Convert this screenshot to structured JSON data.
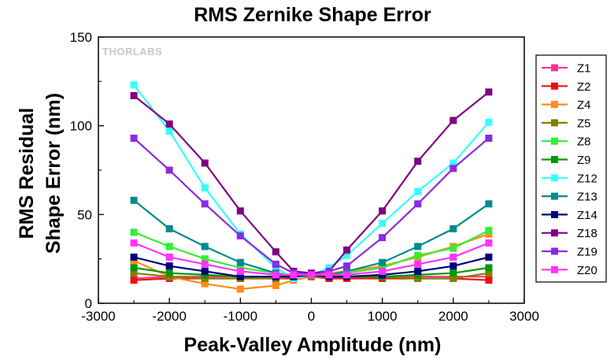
{
  "chart_data": {
    "type": "line",
    "title": "RMS Zernike Shape Error",
    "xlabel": "Peak-Valley Amplitude (nm)",
    "ylabel_line1": "RMS Residual",
    "ylabel_line2": "Shape Error (nm)",
    "watermark": "THORLABS",
    "xlim": [
      -3000,
      3000
    ],
    "ylim": [
      0,
      150
    ],
    "xticks": [
      -3000,
      -2000,
      -1000,
      0,
      1000,
      2000,
      3000
    ],
    "yticks": [
      0,
      50,
      100,
      150
    ],
    "grid": false,
    "legend_position": "right",
    "x": [
      -2500,
      -2000,
      -1500,
      -1000,
      -500,
      -250,
      0,
      250,
      500,
      1000,
      1500,
      2000,
      2500
    ],
    "series": [
      {
        "name": "Z1",
        "color": "#ff3399",
        "marker": "square",
        "values": [
          14,
          15,
          15,
          15,
          15,
          15,
          15,
          15,
          15,
          15,
          15,
          15,
          15
        ]
      },
      {
        "name": "Z2",
        "color": "#ee1111",
        "marker": "square",
        "values": [
          13,
          14,
          14,
          14,
          14,
          14,
          15,
          14,
          14,
          14,
          14,
          14,
          13
        ]
      },
      {
        "name": "Z4",
        "color": "#ff8c1a",
        "marker": "square",
        "values": [
          24,
          15,
          11,
          8,
          10,
          13,
          15,
          17,
          18,
          21,
          26,
          32,
          39
        ]
      },
      {
        "name": "Z5",
        "color": "#808000",
        "marker": "square",
        "values": [
          17,
          15,
          14,
          14,
          14,
          15,
          15,
          15,
          15,
          15,
          14,
          14,
          17
        ]
      },
      {
        "name": "Z8",
        "color": "#33ee33",
        "marker": "square",
        "values": [
          40,
          32,
          25,
          20,
          17,
          16,
          16,
          16,
          17,
          20,
          27,
          31,
          41
        ]
      },
      {
        "name": "Z9",
        "color": "#009900",
        "marker": "square",
        "values": [
          20,
          17,
          16,
          15,
          15,
          15,
          16,
          15,
          15,
          15,
          16,
          17,
          20
        ]
      },
      {
        "name": "Z12",
        "color": "#33ffff",
        "marker": "square",
        "values": [
          123,
          97,
          65,
          39,
          20,
          14,
          16,
          20,
          27,
          45,
          63,
          79,
          102
        ]
      },
      {
        "name": "Z13",
        "color": "#008b8b",
        "marker": "square",
        "values": [
          58,
          42,
          32,
          23,
          17,
          15,
          16,
          16,
          18,
          23,
          32,
          42,
          56
        ]
      },
      {
        "name": "Z14",
        "color": "#00007a",
        "marker": "square",
        "values": [
          26,
          21,
          18,
          15,
          15,
          15,
          16,
          15,
          15,
          16,
          18,
          21,
          26
        ]
      },
      {
        "name": "Z18",
        "color": "#800080",
        "marker": "square",
        "values": [
          117,
          101,
          79,
          52,
          29,
          18,
          17,
          18,
          30,
          52,
          80,
          103,
          119
        ]
      },
      {
        "name": "Z19",
        "color": "#8a2be2",
        "marker": "square",
        "values": [
          93,
          75,
          56,
          38,
          22,
          17,
          16,
          18,
          21,
          37,
          56,
          76,
          93
        ]
      },
      {
        "name": "Z20",
        "color": "#ff33ff",
        "marker": "square",
        "values": [
          34,
          26,
          22,
          18,
          16,
          16,
          16,
          16,
          16,
          18,
          22,
          26,
          34
        ]
      }
    ]
  }
}
